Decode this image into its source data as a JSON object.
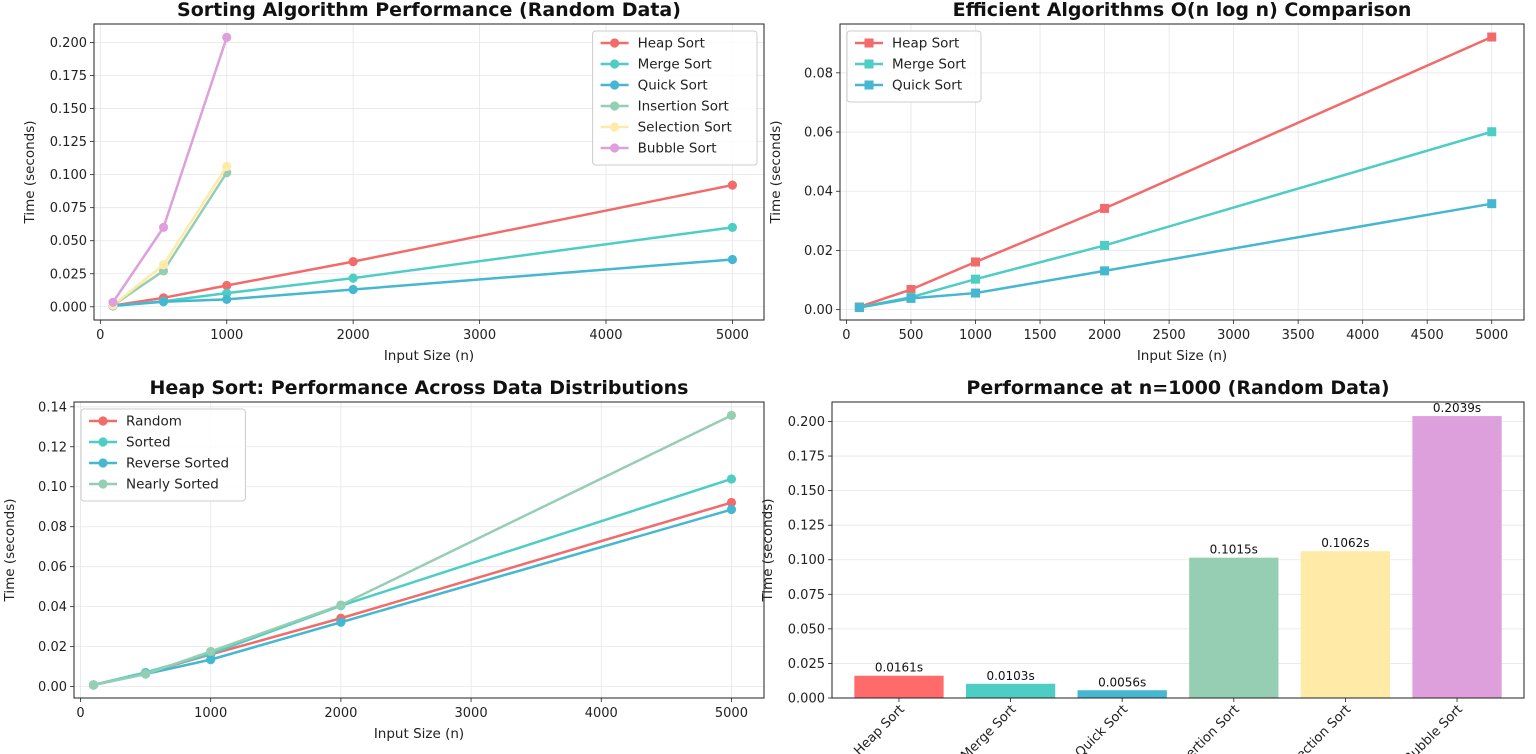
{
  "chart_data": [
    {
      "type": "line",
      "title": "Sorting Algorithm Performance (Random Data)",
      "xlabel": "Input Size (n)",
      "ylabel": "Time (seconds)",
      "xlim": [
        -50,
        5250
      ],
      "ylim": [
        -0.01,
        0.214
      ],
      "xticks": [
        0,
        1000,
        2000,
        3000,
        4000,
        5000
      ],
      "xtick_labels": [
        "0",
        "1000",
        "2000",
        "3000",
        "4000",
        "5000"
      ],
      "yticks": [
        0,
        0.025,
        0.05,
        0.075,
        0.1,
        0.125,
        0.15,
        0.175,
        0.2
      ],
      "ytick_labels": [
        "0.000",
        "0.025",
        "0.050",
        "0.075",
        "0.100",
        "0.125",
        "0.150",
        "0.175",
        "0.200"
      ],
      "grid": true,
      "legend": "top-right",
      "marker": "circle",
      "series": [
        {
          "name": "Heap Sort",
          "color": "#f26a6a",
          "x": [
            100,
            500,
            1000,
            2000,
            5000
          ],
          "values": [
            0.0009,
            0.0068,
            0.0161,
            0.0342,
            0.0921
          ]
        },
        {
          "name": "Merge Sort",
          "color": "#4ecdc4",
          "x": [
            100,
            500,
            1000,
            2000,
            5000
          ],
          "values": [
            0.0008,
            0.0042,
            0.0103,
            0.0217,
            0.0601
          ]
        },
        {
          "name": "Quick Sort",
          "color": "#45b7d1",
          "x": [
            100,
            500,
            1000,
            2000,
            5000
          ],
          "values": [
            0.0007,
            0.0038,
            0.0056,
            0.0131,
            0.0358
          ]
        },
        {
          "name": "Insertion Sort",
          "color": "#96ceb4",
          "x": [
            100,
            500,
            1000
          ],
          "values": [
            0.0011,
            0.0272,
            0.1015
          ]
        },
        {
          "name": "Selection Sort",
          "color": "#ffeaa7",
          "x": [
            100,
            500,
            1000
          ],
          "values": [
            0.0012,
            0.0318,
            0.1062
          ]
        },
        {
          "name": "Bubble Sort",
          "color": "#dda0dd",
          "x": [
            100,
            500,
            1000
          ],
          "values": [
            0.0034,
            0.0601,
            0.2039
          ]
        }
      ]
    },
    {
      "type": "line",
      "title": "Efficient Algorithms O(n log n) Comparison",
      "xlabel": "Input Size (n)",
      "ylabel": "Time (seconds)",
      "xlim": [
        -50,
        5250
      ],
      "ylim": [
        -0.0035,
        0.0965
      ],
      "xticks": [
        0,
        500,
        1000,
        1500,
        2000,
        2500,
        3000,
        3500,
        4000,
        4500,
        5000
      ],
      "xtick_labels": [
        "0",
        "500",
        "1000",
        "1500",
        "2000",
        "2500",
        "3000",
        "3500",
        "4000",
        "4500",
        "5000"
      ],
      "yticks": [
        0,
        0.02,
        0.04,
        0.06,
        0.08
      ],
      "ytick_labels": [
        "0.00",
        "0.02",
        "0.04",
        "0.06",
        "0.08"
      ],
      "grid": true,
      "legend": "top-left",
      "marker": "square",
      "series": [
        {
          "name": "Heap Sort",
          "color": "#f26a6a",
          "x": [
            100,
            500,
            1000,
            2000,
            5000
          ],
          "values": [
            0.0009,
            0.0068,
            0.0161,
            0.0342,
            0.0921
          ]
        },
        {
          "name": "Merge Sort",
          "color": "#4ecdc4",
          "x": [
            100,
            500,
            1000,
            2000,
            5000
          ],
          "values": [
            0.0008,
            0.0042,
            0.0103,
            0.0217,
            0.0601
          ]
        },
        {
          "name": "Quick Sort",
          "color": "#45b7d1",
          "x": [
            100,
            500,
            1000,
            2000,
            5000
          ],
          "values": [
            0.0007,
            0.0038,
            0.0056,
            0.0131,
            0.0358
          ]
        }
      ]
    },
    {
      "type": "line",
      "title": "Heap Sort: Performance Across Data Distributions",
      "xlabel": "Input Size (n)",
      "ylabel": "Time (seconds)",
      "xlim": [
        -50,
        5250
      ],
      "ylim": [
        -0.0057,
        0.1424
      ],
      "xticks": [
        0,
        1000,
        2000,
        3000,
        4000,
        5000
      ],
      "xtick_labels": [
        "0",
        "1000",
        "2000",
        "3000",
        "4000",
        "5000"
      ],
      "yticks": [
        0,
        0.02,
        0.04,
        0.06,
        0.08,
        0.1,
        0.12,
        0.14
      ],
      "ytick_labels": [
        "0.00",
        "0.02",
        "0.04",
        "0.06",
        "0.08",
        "0.10",
        "0.12",
        "0.14"
      ],
      "grid": true,
      "legend": "top-left",
      "marker": "circle",
      "series": [
        {
          "name": "Random",
          "color": "#f26a6a",
          "x": [
            100,
            500,
            1000,
            2000,
            5000
          ],
          "values": [
            0.0009,
            0.0068,
            0.0161,
            0.0342,
            0.0921
          ]
        },
        {
          "name": "Sorted",
          "color": "#4ecdc4",
          "x": [
            100,
            500,
            1000,
            2000,
            5000
          ],
          "values": [
            0.0009,
            0.0071,
            0.0164,
            0.0405,
            0.1039
          ]
        },
        {
          "name": "Reverse Sorted",
          "color": "#45b7d1",
          "x": [
            100,
            500,
            1000,
            2000,
            5000
          ],
          "values": [
            0.0008,
            0.0063,
            0.0135,
            0.0322,
            0.0886
          ]
        },
        {
          "name": "Nearly Sorted",
          "color": "#96ceb4",
          "x": [
            100,
            500,
            1000,
            2000,
            5000
          ],
          "values": [
            0.0009,
            0.0063,
            0.0176,
            0.0408,
            0.1357
          ]
        }
      ]
    },
    {
      "type": "bar",
      "title": "Performance at n=1000 (Random Data)",
      "xlabel": "",
      "ylabel": "Time (seconds)",
      "ylim": [
        0,
        0.2141
      ],
      "yticks": [
        0,
        0.025,
        0.05,
        0.075,
        0.1,
        0.125,
        0.15,
        0.175,
        0.2
      ],
      "ytick_labels": [
        "0.000",
        "0.025",
        "0.050",
        "0.075",
        "0.100",
        "0.125",
        "0.150",
        "0.175",
        "0.200"
      ],
      "grid": true,
      "categories": [
        "Heap Sort",
        "Merge Sort",
        "Quick Sort",
        "Insertion Sort",
        "Selection Sort",
        "Bubble Sort"
      ],
      "values": [
        0.0161,
        0.0103,
        0.0056,
        0.1015,
        0.1062,
        0.2039
      ],
      "bar_labels": [
        "0.0161s",
        "0.0103s",
        "0.0056s",
        "0.1015s",
        "0.1062s",
        "0.2039s"
      ],
      "colors": [
        "#ff6b6b",
        "#4ecdc4",
        "#45b7d1",
        "#96ceb4",
        "#ffeaa7",
        "#dda0dd"
      ]
    }
  ]
}
